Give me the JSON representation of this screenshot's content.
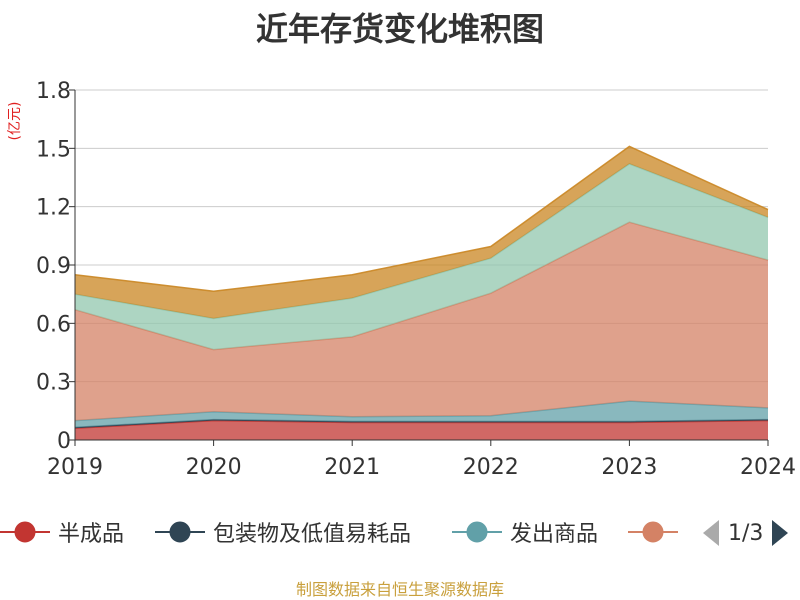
{
  "colors": {
    "semi_finished": "#c23531",
    "packaging": "#2f4554",
    "goods_shipped": "#61a0a8",
    "raw_materials": "#d48265",
    "series5": "#91c7ae",
    "series6": "#ca8622",
    "source": "#c9a03d",
    "unit": "#e02020"
  },
  "chart_data": {
    "type": "area",
    "stacked": true,
    "title": "近年存货变化堆积图",
    "ylabel": "(亿元)",
    "xlabel": "",
    "categories": [
      "2019",
      "2020",
      "2021",
      "2022",
      "2023",
      "2024"
    ],
    "ylim": [
      0,
      1.8
    ],
    "yticks": [
      "0",
      "0.3",
      "0.6",
      "0.9",
      "1.2",
      "1.5",
      "1.8"
    ],
    "ytick_values": [
      0,
      0.3,
      0.6,
      0.9,
      1.2,
      1.5,
      1.8
    ],
    "series": [
      {
        "name": "半成品",
        "values": [
          0.06,
          0.1,
          0.09,
          0.09,
          0.09,
          0.1
        ]
      },
      {
        "name": "包装物及低值易耗品",
        "values": [
          0.005,
          0.005,
          0.005,
          0.005,
          0.005,
          0.005
        ]
      },
      {
        "name": "发出商品",
        "values": [
          0.035,
          0.04,
          0.025,
          0.03,
          0.105,
          0.06
        ]
      },
      {
        "name": "",
        "values": [
          0.57,
          0.32,
          0.41,
          0.63,
          0.92,
          0.76
        ]
      },
      {
        "name": "",
        "values": [
          0.08,
          0.16,
          0.2,
          0.18,
          0.3,
          0.22
        ]
      },
      {
        "name": "",
        "values": [
          0.1,
          0.14,
          0.12,
          0.06,
          0.09,
          0.04
        ]
      }
    ],
    "grid": true,
    "legend_position": "bottom"
  },
  "legend": {
    "items": [
      {
        "label": "半成品"
      },
      {
        "label": "包装物及低值易耗品"
      },
      {
        "label": "发出商品"
      },
      {
        "label": ""
      }
    ],
    "page_text": "1/3"
  },
  "source": "制图数据来自恒生聚源数据库"
}
